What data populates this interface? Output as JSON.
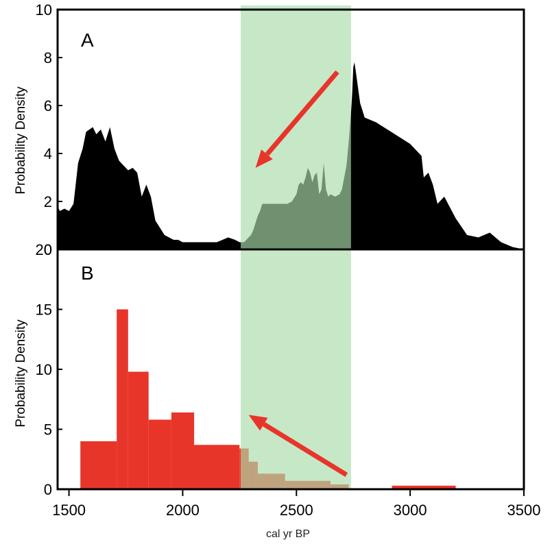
{
  "chart_data": [
    {
      "panel": "A",
      "type": "area",
      "title": "",
      "ylabel": "Probability Density",
      "xlabel": "",
      "xlim": [
        1450,
        3500
      ],
      "ylim": [
        0,
        10
      ],
      "yticks": [
        0,
        2,
        4,
        6,
        8,
        10
      ],
      "color": "#000000",
      "x": [
        1450,
        1460,
        1480,
        1500,
        1520,
        1540,
        1560,
        1575,
        1590,
        1605,
        1620,
        1640,
        1660,
        1680,
        1700,
        1720,
        1740,
        1760,
        1780,
        1800,
        1820,
        1840,
        1860,
        1880,
        1900,
        1920,
        1940,
        1960,
        1980,
        2000,
        2010,
        2050,
        2100,
        2150,
        2200,
        2230,
        2250,
        2270,
        2280,
        2290,
        2300,
        2310,
        2320,
        2330,
        2340,
        2350,
        2400,
        2450,
        2460,
        2480,
        2500,
        2510,
        2520,
        2530,
        2540,
        2550,
        2560,
        2570,
        2580,
        2590,
        2600,
        2610,
        2620,
        2630,
        2640,
        2650,
        2670,
        2690,
        2700,
        2710,
        2720,
        2730,
        2740,
        2745,
        2750,
        2755,
        2760,
        2780,
        2800,
        2850,
        2900,
        2950,
        3000,
        3050,
        3060,
        3080,
        3100,
        3120,
        3150,
        3200,
        3250,
        3300,
        3350,
        3400,
        3450,
        3500
      ],
      "y": [
        1.8,
        1.6,
        1.7,
        1.6,
        1.9,
        3.6,
        4.2,
        4.9,
        5.0,
        5.1,
        4.8,
        5.0,
        4.5,
        5.1,
        4.2,
        3.7,
        3.5,
        3.3,
        3.4,
        3.2,
        2.2,
        2.7,
        2.2,
        1.2,
        0.9,
        0.6,
        0.5,
        0.4,
        0.4,
        0.3,
        0.3,
        0.3,
        0.3,
        0.3,
        0.5,
        0.4,
        0.3,
        0.3,
        0.4,
        0.5,
        0.6,
        0.8,
        1.1,
        1.4,
        1.6,
        1.9,
        1.9,
        1.9,
        1.9,
        2.0,
        2.3,
        2.7,
        2.8,
        2.7,
        3.0,
        3.4,
        3.2,
        2.8,
        3.1,
        3.2,
        2.3,
        2.5,
        3.6,
        2.5,
        2.2,
        2.3,
        2.2,
        2.3,
        2.5,
        3.0,
        3.5,
        4.5,
        5.7,
        6.5,
        7.6,
        7.8,
        7.5,
        6.1,
        5.5,
        5.3,
        5.0,
        4.7,
        4.4,
        3.9,
        3.0,
        3.2,
        2.7,
        1.9,
        2.2,
        1.3,
        0.6,
        0.5,
        0.7,
        0.3,
        0.1,
        0.0
      ]
    },
    {
      "panel": "B",
      "type": "bar",
      "title": "",
      "ylabel": "Probability Density",
      "xlabel": "cal yr BP",
      "xlim": [
        1450,
        3500
      ],
      "ylim": [
        0,
        20
      ],
      "yticks": [
        0,
        5,
        10,
        15,
        20
      ],
      "xticks": [
        1500,
        2000,
        2500,
        3000,
        3500
      ],
      "color": "#e8352a",
      "bins": [
        {
          "x0": 1550,
          "x1": 1710,
          "value": 4.0
        },
        {
          "x0": 1710,
          "x1": 1760,
          "value": 15.0
        },
        {
          "x0": 1760,
          "x1": 1850,
          "value": 9.8
        },
        {
          "x0": 1850,
          "x1": 1950,
          "value": 5.8
        },
        {
          "x0": 1950,
          "x1": 2050,
          "value": 6.4
        },
        {
          "x0": 2050,
          "x1": 2250,
          "value": 3.7
        },
        {
          "x0": 2250,
          "x1": 2290,
          "value": 3.4
        },
        {
          "x0": 2290,
          "x1": 2330,
          "value": 2.3
        },
        {
          "x0": 2330,
          "x1": 2450,
          "value": 1.3
        },
        {
          "x0": 2450,
          "x1": 2650,
          "value": 0.7
        },
        {
          "x0": 2650,
          "x1": 2730,
          "value": 0.4
        },
        {
          "x0": 2920,
          "x1": 3200,
          "value": 0.3
        }
      ]
    }
  ],
  "highlight": {
    "x0": 2255,
    "x1": 2740,
    "color": "#a8dcaa"
  },
  "arrows": [
    {
      "panel": "A",
      "from": [
        2680,
        7.4
      ],
      "to": [
        2320,
        3.4
      ],
      "color": "#e8352a"
    },
    {
      "panel": "B",
      "from": [
        2720,
        1.2
      ],
      "to": [
        2290,
        6.2
      ],
      "color": "#e8352a"
    }
  ]
}
